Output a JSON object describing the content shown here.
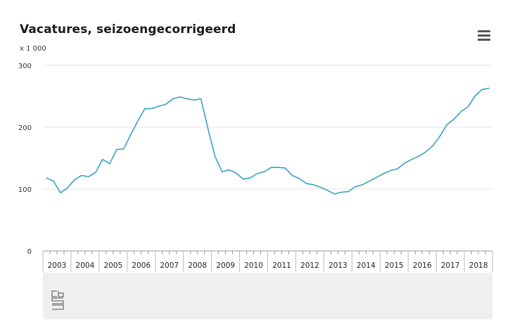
{
  "header": {
    "title": "Vacatures, seizoengecorrigeerd",
    "unit": "x 1 000"
  },
  "colors": {
    "line": "#3aa1c4",
    "grid": "#e6e6e6",
    "axis": "#999999",
    "footer_bg": "#efefef"
  },
  "icons": {
    "menu": "hamburger-menu-icon",
    "logo": "cbs-logo"
  },
  "chart_data": {
    "type": "line",
    "title": "Vacatures, seizoengecorrigeerd",
    "ylabel": "x 1 000",
    "ylim": [
      0,
      300
    ],
    "yticks": [
      0,
      100,
      200,
      300
    ],
    "years": [
      "2003",
      "2004",
      "2005",
      "2006",
      "2007",
      "2008",
      "2009",
      "2010",
      "2011",
      "2012",
      "2013",
      "2014",
      "2015",
      "2016",
      "2017",
      "2018"
    ],
    "x_start": "2003-Q1",
    "grid": true,
    "legend": "none",
    "series": [
      {
        "values": [
          118,
          113,
          94,
          102,
          115,
          122,
          120,
          127,
          148,
          141,
          164,
          165,
          188,
          210,
          230,
          230,
          234,
          237,
          246,
          249,
          246,
          244,
          246,
          198,
          153,
          128,
          131,
          126,
          116,
          118,
          125,
          128,
          135,
          135,
          134,
          122,
          117,
          109,
          107,
          103,
          98,
          92,
          95,
          96,
          104,
          107,
          113,
          119,
          125,
          130,
          133,
          142,
          148,
          153,
          160,
          170,
          185,
          204,
          213,
          225,
          233,
          250,
          261,
          263
        ]
      }
    ]
  }
}
